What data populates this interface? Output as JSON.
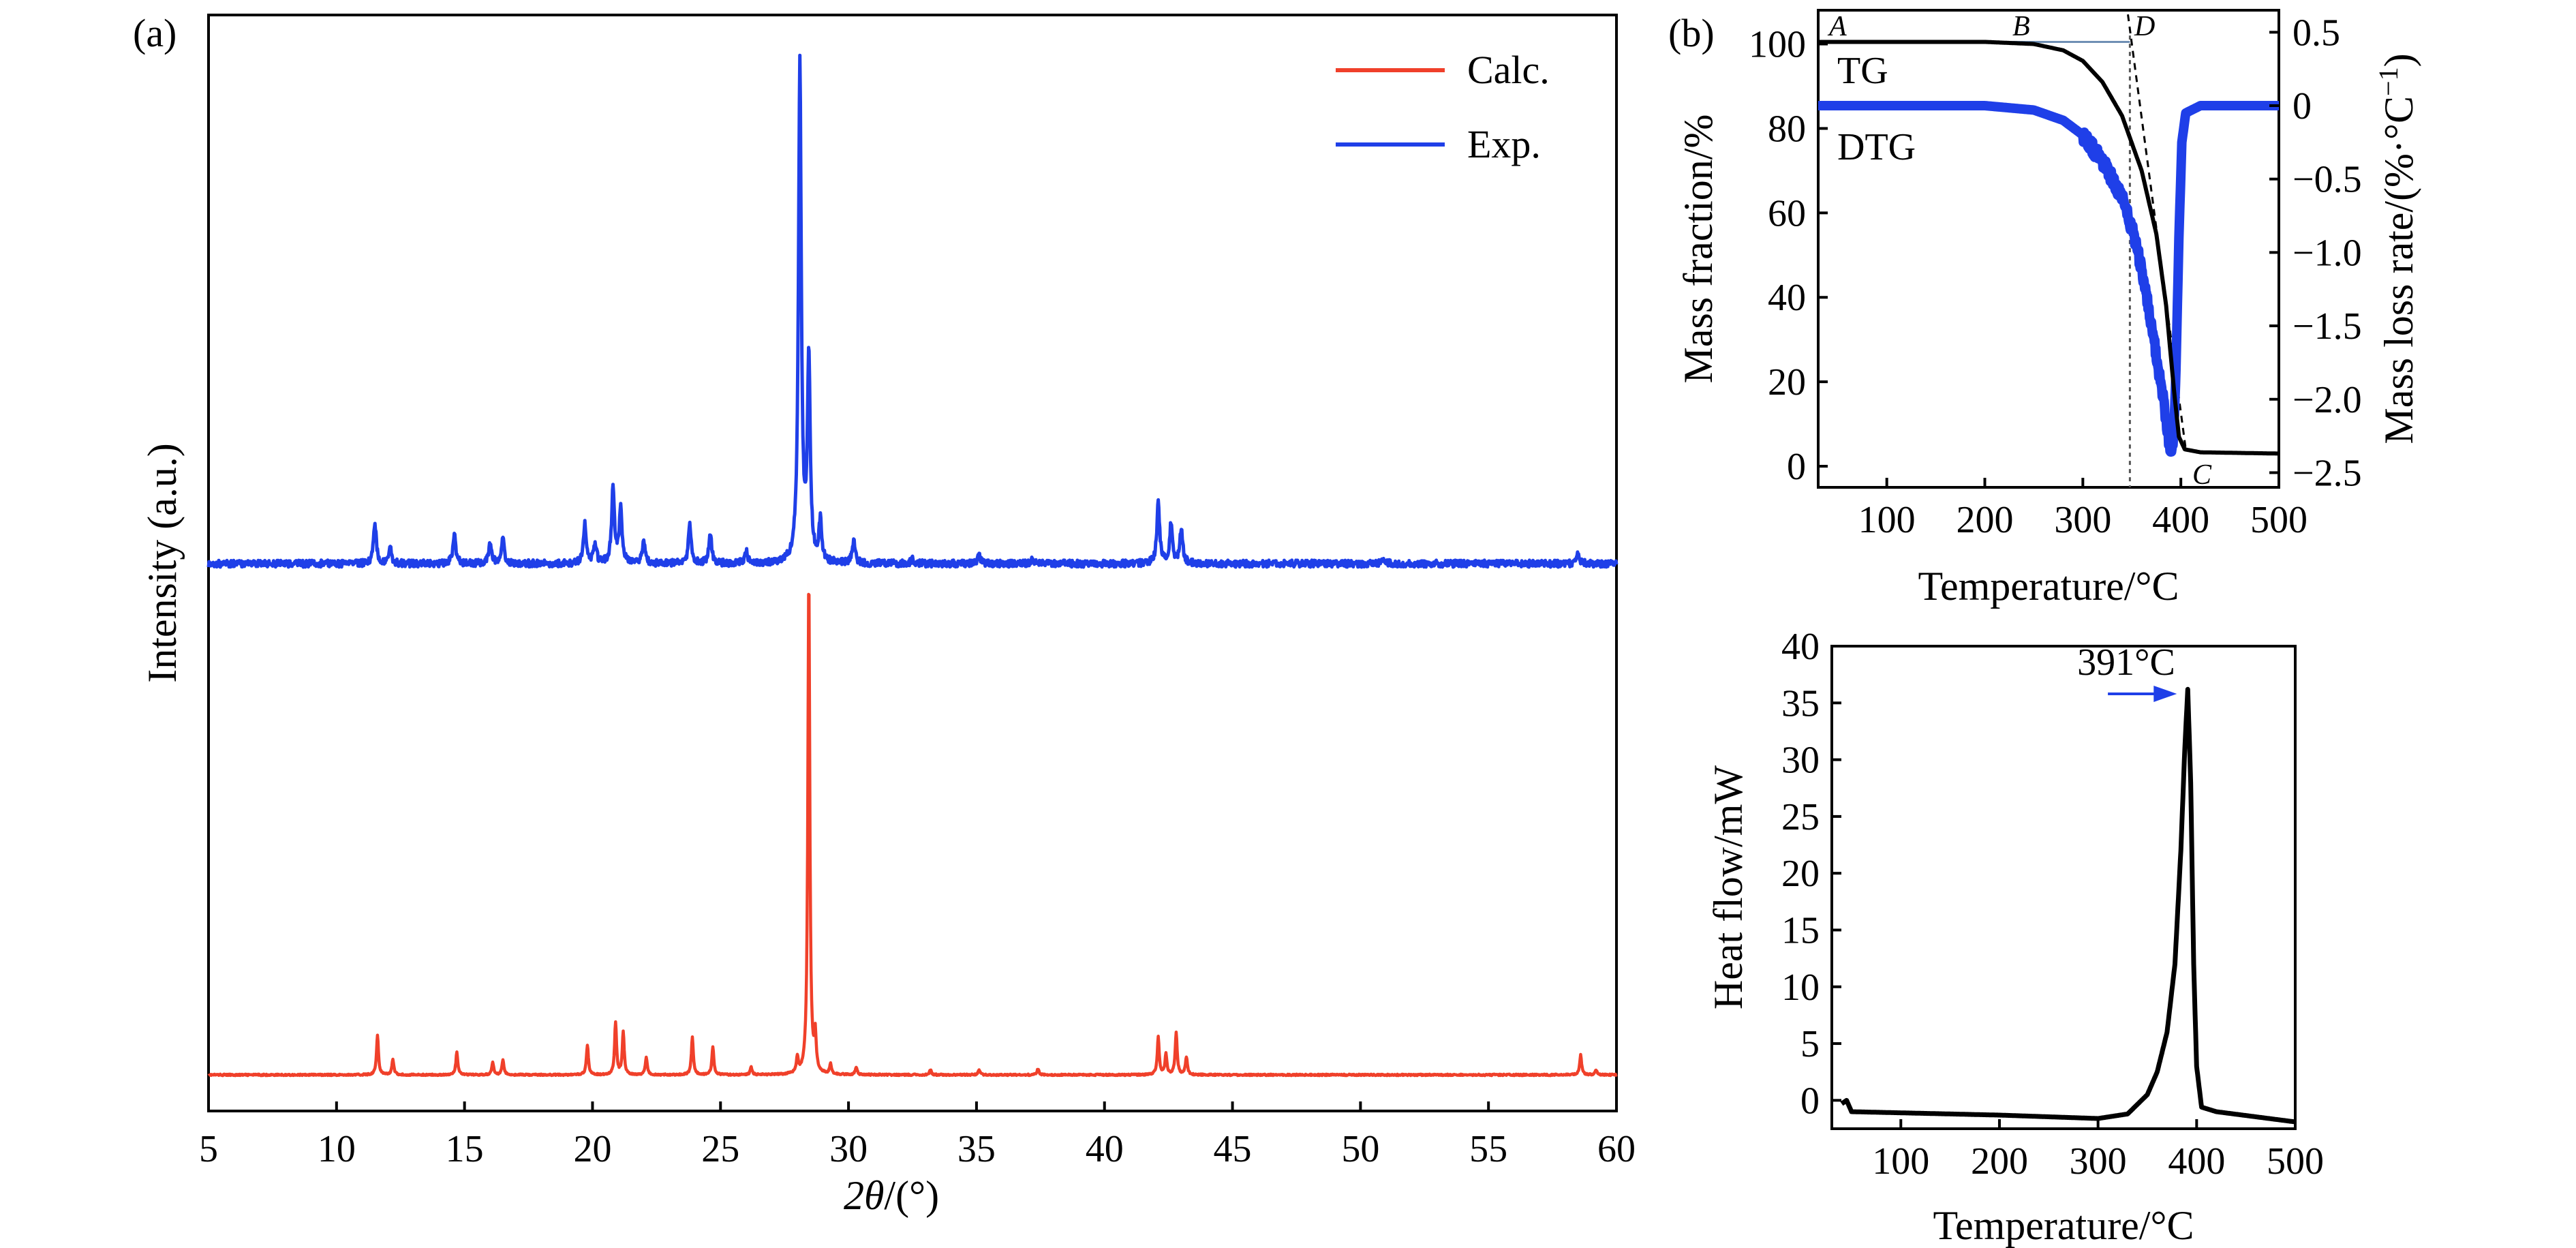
{
  "chart_data": [
    {
      "panel": "(a)",
      "type": "line",
      "xlabel_sym": "2θ",
      "xlabel_unit": "/(°)",
      "ylabel": "Intensity (a.u.)",
      "xlim": [
        5,
        60
      ],
      "xticks": [
        "5",
        "10",
        "15",
        "20",
        "25",
        "30",
        "35",
        "40",
        "45",
        "50",
        "55",
        "60"
      ],
      "legend_position": "top-right",
      "series": [
        {
          "name": "Calc.",
          "color": "#f0402a",
          "offset": 100,
          "peaks": [
            [
              11.6,
              8
            ],
            [
              12.2,
              3
            ],
            [
              14.7,
              4.5
            ],
            [
              16.1,
              2.5
            ],
            [
              16.5,
              3
            ],
            [
              19.8,
              6
            ],
            [
              20.9,
              10.5
            ],
            [
              21.2,
              8.5
            ],
            [
              22.1,
              3.5
            ],
            [
              23.9,
              7.5
            ],
            [
              24.7,
              5.5
            ],
            [
              26.2,
              1.5
            ],
            [
              28.0,
              3
            ],
            [
              28.45,
              100
            ],
            [
              28.7,
              7
            ],
            [
              29.3,
              2
            ],
            [
              30.3,
              1.5
            ],
            [
              33.2,
              1
            ],
            [
              35.1,
              1
            ],
            [
              37.4,
              1.2
            ],
            [
              42.1,
              7.5
            ],
            [
              42.4,
              4
            ],
            [
              42.8,
              8.5
            ],
            [
              43.2,
              3.5
            ],
            [
              58.6,
              4
            ],
            [
              59.2,
              1
            ]
          ]
        },
        {
          "name": "Exp.",
          "color": "#1f3fe8",
          "offset": 0,
          "peaks": [
            [
              11.5,
              8
            ],
            [
              12.1,
              3
            ],
            [
              14.6,
              6
            ],
            [
              16.0,
              4
            ],
            [
              16.5,
              5
            ],
            [
              19.7,
              8
            ],
            [
              20.1,
              4
            ],
            [
              20.8,
              15
            ],
            [
              21.1,
              11
            ],
            [
              22.0,
              4.5
            ],
            [
              23.8,
              7.5
            ],
            [
              24.6,
              6
            ],
            [
              26.0,
              2.5
            ],
            [
              28.1,
              100
            ],
            [
              28.45,
              40
            ],
            [
              28.9,
              8
            ],
            [
              30.2,
              4.5
            ],
            [
              32.5,
              1
            ],
            [
              35.1,
              1.5
            ],
            [
              37.2,
              1
            ],
            [
              42.1,
              12
            ],
            [
              42.6,
              8
            ],
            [
              43.0,
              7
            ],
            [
              50.9,
              1
            ],
            [
              58.5,
              2
            ]
          ]
        }
      ]
    },
    {
      "panel": "(b)",
      "type": "line",
      "xlabel": "Temperature/°C",
      "ylabel_left": "Mass fraction/%",
      "ylabel_right": "Mass loss rate/(%·°C",
      "ylabel_right_sup": "−1",
      "ylabel_right_close": ")",
      "xlim": [
        30,
        500
      ],
      "ylim_left": [
        -5,
        108
      ],
      "ylim_right": [
        -2.6,
        0.65
      ],
      "xticks": [
        100,
        200,
        300,
        400,
        500
      ],
      "yticks_left": [
        0,
        20,
        40,
        60,
        80,
        100
      ],
      "yticks_right": [
        "0.5",
        "0",
        "−0.5",
        "−1.0",
        "−1.5",
        "−2.0",
        "−2.5"
      ],
      "labels": [
        "TG",
        "DTG"
      ],
      "point_labels": [
        "A",
        "B",
        "C",
        "D"
      ],
      "tg": {
        "color": "#000000",
        "points": [
          [
            30,
            100.5
          ],
          [
            200,
            100.5
          ],
          [
            250,
            100
          ],
          [
            280,
            98.5
          ],
          [
            300,
            96
          ],
          [
            320,
            91
          ],
          [
            340,
            83
          ],
          [
            360,
            70
          ],
          [
            375,
            55
          ],
          [
            385,
            38
          ],
          [
            393,
            18
          ],
          [
            398,
            7
          ],
          [
            404,
            4
          ],
          [
            420,
            3.3
          ],
          [
            500,
            3
          ]
        ]
      },
      "dtg": {
        "color": "#1f3fe8",
        "points": [
          [
            30,
            0
          ],
          [
            200,
            0
          ],
          [
            250,
            -0.03
          ],
          [
            280,
            -0.1
          ],
          [
            300,
            -0.2
          ],
          [
            320,
            -0.38
          ],
          [
            340,
            -0.62
          ],
          [
            355,
            -0.95
          ],
          [
            365,
            -1.3
          ],
          [
            375,
            -1.7
          ],
          [
            382,
            -2.0
          ],
          [
            388,
            -2.3
          ],
          [
            392,
            -2.35
          ],
          [
            395,
            -1.8
          ],
          [
            398,
            -0.9
          ],
          [
            401,
            -0.25
          ],
          [
            405,
            -0.05
          ],
          [
            420,
            0
          ],
          [
            500,
            0
          ]
        ]
      },
      "onset_temperature": 348
    },
    {
      "panel": "",
      "type": "line",
      "xlabel": "Temperature/°C",
      "ylabel": "Heat flow/mW",
      "xlim": [
        30,
        500
      ],
      "ylim": [
        -2.5,
        40
      ],
      "xticks": [
        100,
        200,
        300,
        400,
        500
      ],
      "yticks": [
        0,
        5,
        10,
        15,
        20,
        25,
        30,
        35,
        40
      ],
      "annotation": "391°C",
      "peak_temperature": 391,
      "series": [
        {
          "color": "#000000",
          "points": [
            [
              40,
              -0.3
            ],
            [
              45,
              0
            ],
            [
              50,
              -1.0
            ],
            [
              100,
              -1.1
            ],
            [
              200,
              -1.3
            ],
            [
              300,
              -1.6
            ],
            [
              330,
              -1.2
            ],
            [
              350,
              0.5
            ],
            [
              360,
              2.5
            ],
            [
              370,
              6
            ],
            [
              378,
              12
            ],
            [
              384,
              22
            ],
            [
              388,
              31
            ],
            [
              391,
              36.2
            ],
            [
              394,
              28
            ],
            [
              397,
              12
            ],
            [
              400,
              3
            ],
            [
              405,
              -0.6
            ],
            [
              420,
              -1.0
            ],
            [
              500,
              -1.9
            ]
          ]
        }
      ]
    }
  ]
}
